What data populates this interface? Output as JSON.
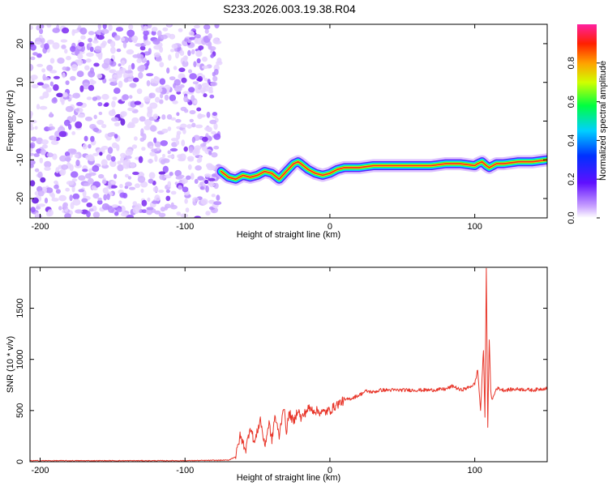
{
  "title": "S233.2026.003.19.38.R04",
  "colors": {
    "snr_line": "#e8362a",
    "noise": "#8a2be2"
  },
  "chart_data": [
    {
      "type": "heatmap",
      "xlabel": "Height of straight line (km)",
      "ylabel": "Frequency (Hz)",
      "xlim": [
        -207,
        150
      ],
      "ylim": [
        -25,
        25
      ],
      "xticks": [
        -200,
        -100,
        0,
        100
      ],
      "yticks": [
        -20,
        -10,
        0,
        10,
        20
      ],
      "noise_region_x": [
        -207,
        -76
      ],
      "trace": {
        "x": [
          -75,
          -70,
          -65,
          -60,
          -55,
          -50,
          -45,
          -40,
          -35,
          -30,
          -25,
          -22,
          -20,
          -15,
          -10,
          -5,
          0,
          5,
          10,
          20,
          30,
          40,
          50,
          60,
          70,
          80,
          90,
          100,
          102,
          105,
          108,
          110,
          115,
          120,
          130,
          140,
          150
        ],
        "y": [
          -13,
          -14.5,
          -15,
          -14,
          -14.5,
          -14,
          -13,
          -13.5,
          -15,
          -13,
          -11,
          -10.5,
          -11,
          -12.5,
          -13.5,
          -14,
          -13.5,
          -12.5,
          -12,
          -12,
          -11.5,
          -11.5,
          -11.5,
          -11.5,
          -11.5,
          -11,
          -11,
          -11.5,
          -11,
          -10.5,
          -11.5,
          -12,
          -11,
          -11,
          -10.5,
          -10.5,
          -10
        ]
      },
      "colorbar": {
        "label": "Normalized spectral amplitude",
        "ticks": [
          "0.0",
          "0.2",
          "0.4",
          "0.6",
          "0.8"
        ]
      }
    },
    {
      "type": "line",
      "xlabel": "Height of straight line (km)",
      "ylabel": "SNR (10 * v/v)",
      "xlim": [
        -207,
        150
      ],
      "ylim": [
        0,
        1900
      ],
      "xticks": [
        -200,
        -100,
        0,
        100
      ],
      "yticks": [
        0,
        500,
        1000,
        1500
      ],
      "series": [
        {
          "x": [
            -207,
            -100,
            -70,
            -65,
            -62,
            -58,
            -55,
            -52,
            -48,
            -45,
            -42,
            -40,
            -38,
            -35,
            -32,
            -30,
            -28,
            -25,
            -22,
            -20,
            -15,
            -10,
            -5,
            0,
            5,
            10,
            15,
            20,
            25,
            30,
            35,
            40,
            50,
            60,
            70,
            80,
            85,
            90,
            95,
            100,
            102,
            104,
            106,
            107,
            108,
            109,
            110,
            111,
            112,
            115,
            120,
            130,
            140,
            150
          ],
          "y": [
            10,
            10,
            15,
            50,
            250,
            120,
            350,
            180,
            420,
            150,
            380,
            200,
            450,
            250,
            550,
            300,
            480,
            380,
            520,
            420,
            520,
            500,
            480,
            500,
            560,
            600,
            620,
            650,
            690,
            680,
            700,
            700,
            700,
            700,
            700,
            710,
            740,
            700,
            720,
            760,
            900,
            500,
            1100,
            420,
            1900,
            350,
            1200,
            700,
            600,
            720,
            700,
            710,
            700,
            720
          ]
        }
      ]
    }
  ]
}
